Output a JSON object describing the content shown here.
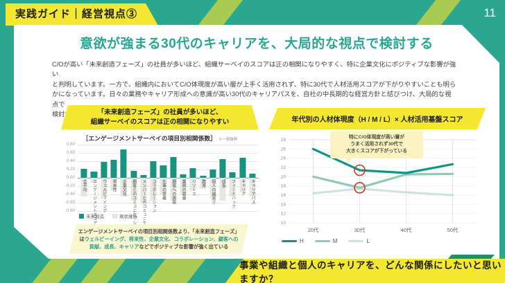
{
  "badge": {
    "label": "実践ガイド｜経営視点③"
  },
  "page_number": "11",
  "title": "意欲が強まる30代のキャリアを、大局的な視点で検討する",
  "body": "C/Oが高い「未来創造フェーズ」の社員が多いほど、組織サーベイのスコアは正の相関になりやすく、特に企業文化にポジティブな影響が強い\nと判明しています。一方で、組織内においてC/O体現度が高い層が上手く活用されず、特に30代で人材活用スコアが下がりやすいことも明ら\nかになっています。日々の業務やキャリア形成への意識が高い30代のキャリアパスを、自社の中長期的な経営方針と結びつけ、大局的な視点で\n検討することが重要です。",
  "footer_question": "事業や組織と個人のキャリアを、どんな関係にしたいと思いますか？",
  "colors": {
    "frame_teal": "#2aa78e",
    "title_teal": "#2ba593",
    "bar_teal": "#17947f",
    "bar_gray": "#e6e6e3",
    "yellow": "#f3e732",
    "lime": "#a9cb52",
    "note_bg": "#faf6d0",
    "annotation_bg": "#fbf4c2",
    "highlight_red": "#cf3325",
    "line_h": "#0f9682",
    "line_m": "#93c8b4",
    "line_l": "#cde4d8"
  },
  "left_panel": {
    "header": "「未来創造フェーズ」の社員が多いほど、\n組織サーベイのスコアは正の相関になりやすい",
    "chart_title": "［エンゲージメントサーベイの項目別相関係数］",
    "chart_title_note": "※一部抜粋",
    "note_parts": [
      {
        "text": "エンゲージメントサーベイの項目別相関係数より、「未来創造フェーズ」は",
        "color": "dark"
      },
      {
        "text": "ウェルビーイング、将来性、企業文化、コラボレーション、顧客への貢献、成長、キャリア",
        "color": "teal"
      },
      {
        "text": "などでポジティブな影響が強く出ている",
        "color": "dark"
      }
    ]
  },
  "right_panel": {
    "header": "年代別の人材体現度（H / M / L）× 人材活用基盤スコア",
    "annotation": "特にC/O体現度が高い層が\nうまく活用されず30代で\n大きくスコアが下がっている"
  },
  "chart_data": [
    {
      "type": "bar",
      "title": "エンゲージメントサーベイの項目別相関係数",
      "categories": [
        "全平均",
        "エンゲージメントスコア",
        "ウェルビーイング",
        "将来性",
        "企業文化",
        "顧客とのコミュニケーション",
        "メンバーとのコミュニケーション",
        "コラボレーション",
        "仕事の意義",
        "顧客への貢献",
        "業務の裁量",
        "リソース",
        "教育",
        "個人の誠実さ",
        "成長",
        "フィードバック",
        "キャリア",
        "キャリアパス"
      ],
      "series": [
        {
          "name": "未来創造",
          "color": "#17947f",
          "values": [
            0.21,
            0.15,
            0.38,
            0.42,
            0.67,
            0.16,
            0.06,
            0.39,
            0.3,
            0.5,
            0.07,
            0.22,
            0.05,
            0.2,
            0.44,
            0.13,
            0.48,
            0.1
          ]
        },
        {
          "name": "現状維持",
          "color": "#e6e6e3",
          "values": [
            -0.45,
            -0.12,
            -0.5,
            -0.3,
            -0.45,
            -0.55,
            -0.6,
            -0.55,
            -0.4,
            -0.55,
            -0.4,
            -0.32,
            -0.28,
            -0.5,
            -0.55,
            -0.45,
            -0.35,
            -0.45
          ]
        }
      ],
      "ylim": [
        -0.8,
        0.8
      ],
      "yticks": [
        "0.80",
        "0.60",
        "0.40",
        "0.20",
        "0.00",
        "-0.20",
        "-0.40",
        "-0.60",
        "-0.80"
      ],
      "legend_position": "bottom-left",
      "grid": true
    },
    {
      "type": "line",
      "title": "年代別の人材体現度（H / M / L）× 人材活用基盤スコア",
      "categories": [
        "20代",
        "30代",
        "40代",
        "50代"
      ],
      "series": [
        {
          "name": "H",
          "color": "#0f9682",
          "values": [
            26.0,
            21.4,
            20.8,
            22.7
          ]
        },
        {
          "name": "M",
          "color": "#93c8b4",
          "values": [
            20.0,
            17.6,
            20.5,
            20.6
          ]
        },
        {
          "name": "L",
          "color": "#cde4d8",
          "values": [
            16.4,
            17.4,
            16.6,
            16.0
          ]
        }
      ],
      "ylim": [
        10,
        28
      ],
      "ytick_step": 2,
      "highlights": [
        {
          "series": "H",
          "index": 1
        },
        {
          "series": "M",
          "index": 1
        }
      ],
      "legend_position": "bottom-left",
      "grid": true
    }
  ]
}
